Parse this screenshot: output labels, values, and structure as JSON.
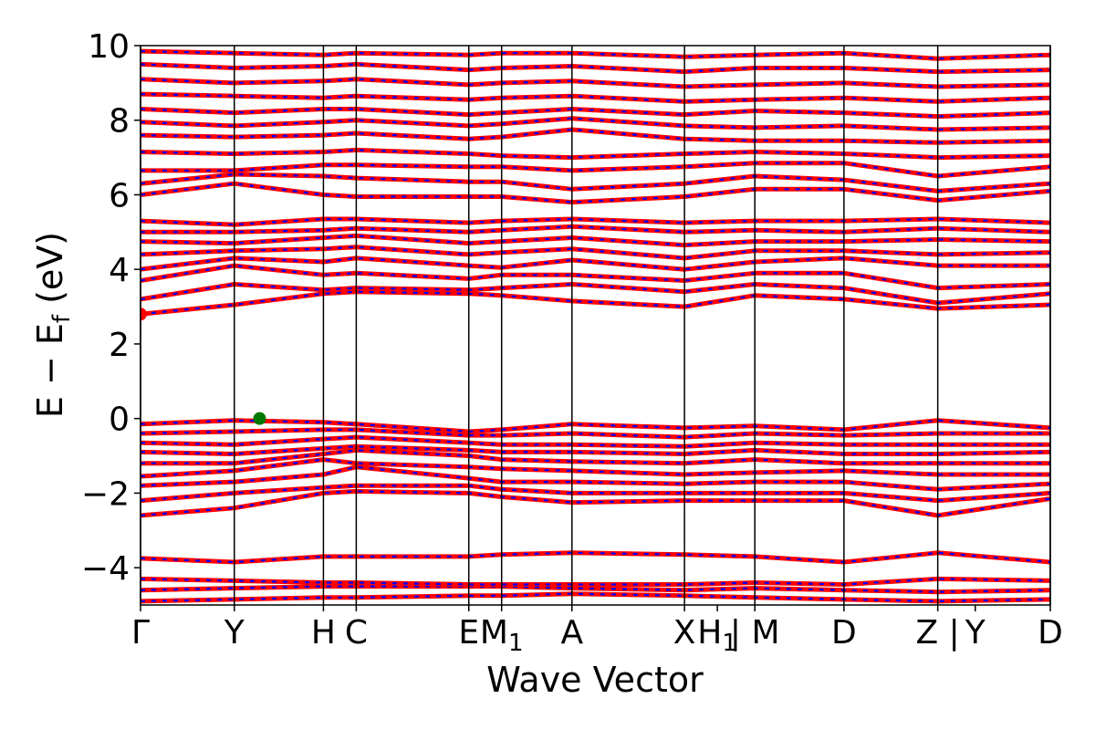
{
  "chart_data": {
    "type": "line",
    "title": "",
    "xlabel": "Wave Vector",
    "ylabel": "E − E",
    "ylabel_sub": "f",
    "ylabel_unit": " (eV)",
    "ylim": [
      -5,
      10
    ],
    "yticks": [
      -4,
      -2,
      0,
      2,
      4,
      6,
      8,
      10
    ],
    "ytick_labels": [
      "−4",
      "−2",
      "0",
      "2",
      "4",
      "6",
      "8",
      "10"
    ],
    "grid": false,
    "legend": "none",
    "kpath": [
      {
        "label": "Γ",
        "pos": 0.0
      },
      {
        "label": "Y",
        "pos": 1.0
      },
      {
        "label": "H",
        "pos": 1.95
      },
      {
        "label": "C",
        "pos": 2.3
      },
      {
        "label": "E",
        "pos": 3.5
      },
      {
        "label": "M",
        "sub": "1",
        "pos": 3.85
      },
      {
        "label": "A",
        "pos": 4.6
      },
      {
        "label": "X",
        "pos": 5.8
      },
      {
        "label": "H",
        "sub": "1",
        "pos": 6.15
      },
      {
        "label": "| M",
        "pos": 6.55
      },
      {
        "label": "D",
        "pos": 7.5
      },
      {
        "label": "Z |",
        "pos": 8.5
      },
      {
        "label": "Y",
        "pos": 8.9
      },
      {
        "label": "D",
        "pos": 9.7
      }
    ],
    "kmax": 9.7,
    "vlines": [
      0,
      1.0,
      1.95,
      2.3,
      3.5,
      3.85,
      4.6,
      5.8,
      6.55,
      7.5,
      8.5,
      9.7
    ],
    "band_colors": {
      "band": "#ff0000",
      "projection": "#0000ff"
    },
    "markers": [
      {
        "name": "cbm",
        "x": 0.0,
        "y": 2.8,
        "color": "#ff0000"
      },
      {
        "name": "vbm",
        "x": 1.27,
        "y": 0.0,
        "color": "#007700"
      }
    ],
    "series": [
      {
        "x": [
          0,
          1.0,
          1.95,
          2.3,
          3.5,
          3.85,
          4.6,
          5.8,
          6.55,
          7.5,
          8.5,
          9.7
        ],
        "y": [
          -4.9,
          -4.85,
          -4.8,
          -4.8,
          -4.75,
          -4.75,
          -4.7,
          -4.75,
          -4.8,
          -4.85,
          -4.9,
          -4.85
        ]
      },
      {
        "x": [
          0,
          1.0,
          1.95,
          2.3,
          3.5,
          3.85,
          4.6,
          5.8,
          6.55,
          7.5,
          8.5,
          9.7
        ],
        "y": [
          -4.6,
          -4.55,
          -4.5,
          -4.5,
          -4.5,
          -4.5,
          -4.55,
          -4.6,
          -4.55,
          -4.6,
          -4.65,
          -4.6
        ]
      },
      {
        "x": [
          0,
          1.0,
          1.95,
          2.3,
          3.5,
          3.85,
          4.6,
          5.8,
          6.55,
          7.5,
          8.5,
          9.7
        ],
        "y": [
          -4.3,
          -4.35,
          -4.4,
          -4.4,
          -4.45,
          -4.45,
          -4.45,
          -4.45,
          -4.4,
          -4.45,
          -4.3,
          -4.35
        ]
      },
      {
        "x": [
          0,
          1.0,
          1.95,
          2.3,
          3.5,
          3.85,
          4.6,
          5.8,
          6.55,
          7.5,
          8.5,
          9.7
        ],
        "y": [
          -3.75,
          -3.85,
          -3.7,
          -3.7,
          -3.7,
          -3.65,
          -3.6,
          -3.65,
          -3.7,
          -3.85,
          -3.6,
          -3.85
        ]
      },
      {
        "x": [
          0,
          1.0,
          1.95,
          2.3,
          3.5,
          3.85,
          4.6,
          5.8,
          6.55,
          7.5,
          8.5,
          9.7
        ],
        "y": [
          -2.6,
          -2.4,
          -2.0,
          -1.95,
          -2.0,
          -2.1,
          -2.25,
          -2.2,
          -2.2,
          -2.2,
          -2.6,
          -2.15
        ]
      },
      {
        "x": [
          0,
          1.0,
          1.95,
          2.3,
          3.5,
          3.85,
          4.6,
          5.8,
          6.55,
          7.5,
          8.5,
          9.7
        ],
        "y": [
          -2.2,
          -2.0,
          -1.85,
          -1.8,
          -1.8,
          -1.9,
          -2.0,
          -2.0,
          -2.0,
          -2.0,
          -2.2,
          -2.0
        ]
      },
      {
        "x": [
          0,
          1.0,
          1.95,
          2.3,
          3.5,
          3.85,
          4.6,
          5.8,
          6.55,
          7.5,
          8.5,
          9.7
        ],
        "y": [
          -1.8,
          -1.7,
          -1.5,
          -1.3,
          -1.6,
          -1.7,
          -1.7,
          -1.75,
          -1.7,
          -1.7,
          -1.9,
          -1.75
        ]
      },
      {
        "x": [
          0,
          1.0,
          1.95,
          2.3,
          3.5,
          3.85,
          4.6,
          5.8,
          6.55,
          7.5,
          8.5,
          9.7
        ],
        "y": [
          -1.55,
          -1.4,
          -1.1,
          -1.2,
          -1.3,
          -1.35,
          -1.4,
          -1.5,
          -1.45,
          -1.4,
          -1.5,
          -1.5
        ]
      },
      {
        "x": [
          0,
          1.0,
          1.95,
          2.3,
          3.5,
          3.85,
          4.6,
          5.8,
          6.55,
          7.5,
          8.5,
          9.7
        ],
        "y": [
          -1.2,
          -1.2,
          -0.95,
          -0.85,
          -1.0,
          -1.1,
          -1.15,
          -1.2,
          -1.1,
          -1.2,
          -1.2,
          -1.2
        ]
      },
      {
        "x": [
          0,
          1.0,
          1.95,
          2.3,
          3.5,
          3.85,
          4.6,
          5.8,
          6.55,
          7.5,
          8.5,
          9.7
        ],
        "y": [
          -0.9,
          -0.95,
          -0.8,
          -0.75,
          -0.85,
          -0.9,
          -0.9,
          -0.95,
          -0.85,
          -0.95,
          -0.95,
          -0.9
        ]
      },
      {
        "x": [
          0,
          1.0,
          1.95,
          2.3,
          3.5,
          3.85,
          4.6,
          5.8,
          6.55,
          7.5,
          8.5,
          9.7
        ],
        "y": [
          -0.65,
          -0.7,
          -0.55,
          -0.5,
          -0.65,
          -0.7,
          -0.7,
          -0.75,
          -0.65,
          -0.7,
          -0.7,
          -0.7
        ]
      },
      {
        "x": [
          0,
          1.0,
          1.95,
          2.3,
          3.5,
          3.85,
          4.6,
          5.8,
          6.55,
          7.5,
          8.5,
          9.7
        ],
        "y": [
          -0.4,
          -0.35,
          -0.3,
          -0.3,
          -0.45,
          -0.45,
          -0.4,
          -0.5,
          -0.4,
          -0.45,
          -0.4,
          -0.4
        ]
      },
      {
        "x": [
          0,
          1.0,
          1.95,
          2.3,
          3.5,
          3.85,
          4.6,
          5.8,
          6.55,
          7.5,
          8.5,
          9.7
        ],
        "y": [
          -0.15,
          -0.05,
          -0.1,
          -0.15,
          -0.35,
          -0.3,
          -0.15,
          -0.25,
          -0.2,
          -0.3,
          -0.05,
          -0.25
        ]
      },
      {
        "x": [
          0,
          1.0,
          1.95,
          2.3,
          3.5,
          3.85,
          4.6,
          5.8,
          6.55,
          7.5,
          8.5,
          9.7
        ],
        "y": [
          2.8,
          3.05,
          3.35,
          3.4,
          3.35,
          3.3,
          3.15,
          3.0,
          3.3,
          3.2,
          2.95,
          3.05
        ]
      },
      {
        "x": [
          0,
          1.0,
          1.95,
          2.3,
          3.5,
          3.85,
          4.6,
          5.8,
          6.55,
          7.5,
          8.5,
          9.7
        ],
        "y": [
          3.2,
          3.6,
          3.45,
          3.5,
          3.45,
          3.5,
          3.6,
          3.4,
          3.6,
          3.5,
          3.1,
          3.35
        ]
      },
      {
        "x": [
          0,
          1.0,
          1.95,
          2.3,
          3.5,
          3.85,
          4.6,
          5.8,
          6.55,
          7.5,
          8.5,
          9.7
        ],
        "y": [
          3.7,
          4.1,
          3.85,
          3.9,
          3.75,
          3.85,
          3.85,
          3.7,
          3.9,
          3.9,
          3.5,
          3.6
        ]
      },
      {
        "x": [
          0,
          1.0,
          1.95,
          2.3,
          3.5,
          3.85,
          4.6,
          5.8,
          6.55,
          7.5,
          8.5,
          9.7
        ],
        "y": [
          4.0,
          4.3,
          4.2,
          4.3,
          4.1,
          4.05,
          4.25,
          4.0,
          4.2,
          4.3,
          4.1,
          4.1
        ]
      },
      {
        "x": [
          0,
          1.0,
          1.95,
          2.3,
          3.5,
          3.85,
          4.6,
          5.8,
          6.55,
          7.5,
          8.5,
          9.7
        ],
        "y": [
          4.4,
          4.5,
          4.55,
          4.6,
          4.4,
          4.45,
          4.55,
          4.3,
          4.5,
          4.5,
          4.4,
          4.45
        ]
      },
      {
        "x": [
          0,
          1.0,
          1.95,
          2.3,
          3.5,
          3.85,
          4.6,
          5.8,
          6.55,
          7.5,
          8.5,
          9.7
        ],
        "y": [
          4.75,
          4.7,
          4.85,
          4.9,
          4.7,
          4.75,
          4.85,
          4.65,
          4.75,
          4.75,
          4.8,
          4.75
        ]
      },
      {
        "x": [
          0,
          1.0,
          1.95,
          2.3,
          3.5,
          3.85,
          4.6,
          5.8,
          6.55,
          7.5,
          8.5,
          9.7
        ],
        "y": [
          5.0,
          5.0,
          5.05,
          5.1,
          5.0,
          5.05,
          5.15,
          5.0,
          5.05,
          5.0,
          5.1,
          5.0
        ]
      },
      {
        "x": [
          0,
          1.0,
          1.95,
          2.3,
          3.5,
          3.85,
          4.6,
          5.8,
          6.55,
          7.5,
          8.5,
          9.7
        ],
        "y": [
          5.3,
          5.2,
          5.35,
          5.35,
          5.25,
          5.3,
          5.35,
          5.25,
          5.3,
          5.3,
          5.35,
          5.25
        ]
      },
      {
        "x": [
          0,
          1.0,
          1.95,
          2.3,
          3.5,
          3.85,
          4.6,
          5.8,
          6.55,
          7.5,
          8.5,
          9.7
        ],
        "y": [
          6.0,
          6.3,
          6.0,
          5.95,
          5.95,
          5.95,
          5.8,
          5.95,
          6.15,
          6.15,
          5.85,
          6.1
        ]
      },
      {
        "x": [
          0,
          1.0,
          1.95,
          2.3,
          3.5,
          3.85,
          4.6,
          5.8,
          6.55,
          7.5,
          8.5,
          9.7
        ],
        "y": [
          6.3,
          6.55,
          6.5,
          6.45,
          6.35,
          6.35,
          6.15,
          6.3,
          6.5,
          6.4,
          6.1,
          6.3
        ]
      },
      {
        "x": [
          0,
          1.0,
          1.95,
          2.3,
          3.5,
          3.85,
          4.6,
          5.8,
          6.55,
          7.5,
          8.5,
          9.7
        ],
        "y": [
          6.65,
          6.65,
          6.8,
          6.8,
          6.75,
          6.75,
          6.65,
          6.75,
          6.85,
          6.85,
          6.5,
          6.75
        ]
      },
      {
        "x": [
          0,
          1.0,
          1.95,
          2.3,
          3.5,
          3.85,
          4.6,
          5.8,
          6.55,
          7.5,
          8.5,
          9.7
        ],
        "y": [
          7.15,
          7.1,
          7.15,
          7.2,
          7.1,
          7.05,
          7.0,
          7.1,
          7.15,
          7.1,
          7.0,
          7.05
        ]
      },
      {
        "x": [
          0,
          1.0,
          1.95,
          2.3,
          3.5,
          3.85,
          4.6,
          5.8,
          6.55,
          7.5,
          8.5,
          9.7
        ],
        "y": [
          7.6,
          7.55,
          7.6,
          7.65,
          7.5,
          7.55,
          7.75,
          7.5,
          7.45,
          7.45,
          7.4,
          7.45
        ]
      },
      {
        "x": [
          0,
          1.0,
          1.95,
          2.3,
          3.5,
          3.85,
          4.6,
          5.8,
          6.55,
          7.5,
          8.5,
          9.7
        ],
        "y": [
          7.95,
          7.85,
          7.95,
          8.0,
          7.85,
          7.9,
          8.05,
          7.85,
          7.8,
          7.85,
          7.75,
          7.8
        ]
      },
      {
        "x": [
          0,
          1.0,
          1.95,
          2.3,
          3.5,
          3.85,
          4.6,
          5.8,
          6.55,
          7.5,
          8.5,
          9.7
        ],
        "y": [
          8.3,
          8.2,
          8.3,
          8.3,
          8.15,
          8.2,
          8.3,
          8.15,
          8.25,
          8.2,
          8.1,
          8.2
        ]
      },
      {
        "x": [
          0,
          1.0,
          1.95,
          2.3,
          3.5,
          3.85,
          4.6,
          5.8,
          6.55,
          7.5,
          8.5,
          9.7
        ],
        "y": [
          8.7,
          8.65,
          8.6,
          8.65,
          8.55,
          8.6,
          8.65,
          8.5,
          8.55,
          8.6,
          8.5,
          8.6
        ]
      },
      {
        "x": [
          0,
          1.0,
          1.95,
          2.3,
          3.5,
          3.85,
          4.6,
          5.8,
          6.55,
          7.5,
          8.5,
          9.7
        ],
        "y": [
          9.1,
          9.0,
          9.05,
          9.1,
          8.95,
          9.0,
          9.05,
          8.9,
          8.95,
          9.0,
          8.9,
          8.95
        ]
      },
      {
        "x": [
          0,
          1.0,
          1.95,
          2.3,
          3.5,
          3.85,
          4.6,
          5.8,
          6.55,
          7.5,
          8.5,
          9.7
        ],
        "y": [
          9.5,
          9.4,
          9.45,
          9.5,
          9.35,
          9.4,
          9.45,
          9.3,
          9.4,
          9.4,
          9.3,
          9.35
        ]
      },
      {
        "x": [
          0,
          1.0,
          1.95,
          2.3,
          3.5,
          3.85,
          4.6,
          5.8,
          6.55,
          7.5,
          8.5,
          9.7
        ],
        "y": [
          9.85,
          9.8,
          9.75,
          9.8,
          9.75,
          9.8,
          9.8,
          9.7,
          9.75,
          9.8,
          9.65,
          9.75
        ]
      }
    ]
  }
}
